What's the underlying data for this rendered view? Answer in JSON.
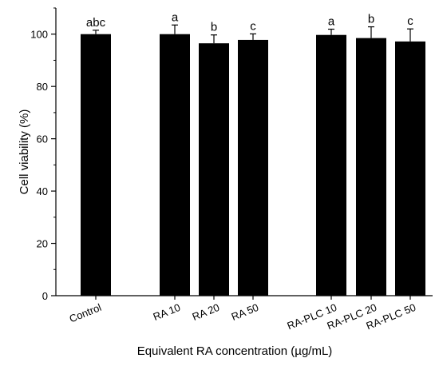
{
  "chart_data": {
    "type": "bar",
    "title": "",
    "xlabel": "Equivalent RA concentration (µg/mL)",
    "ylabel": "Cell viability (%)",
    "ylim": [
      0,
      110
    ],
    "yticks": [
      0,
      20,
      40,
      60,
      80,
      100
    ],
    "grid": false,
    "legend": "none",
    "bar_color": "#000000",
    "categories": [
      "Control",
      "RA 10",
      "RA 20",
      "RA 50",
      "RA-PLC 10",
      "RA-PLC 20",
      "RA-PLC 50"
    ],
    "values": [
      100,
      100,
      96.5,
      97.8,
      99.7,
      98.5,
      97.2
    ],
    "errors": [
      1.5,
      3.5,
      3.2,
      2.3,
      2.2,
      4.3,
      4.8
    ],
    "annotations": [
      "abc",
      "a",
      "b",
      "c",
      "a",
      "b",
      "c"
    ]
  }
}
